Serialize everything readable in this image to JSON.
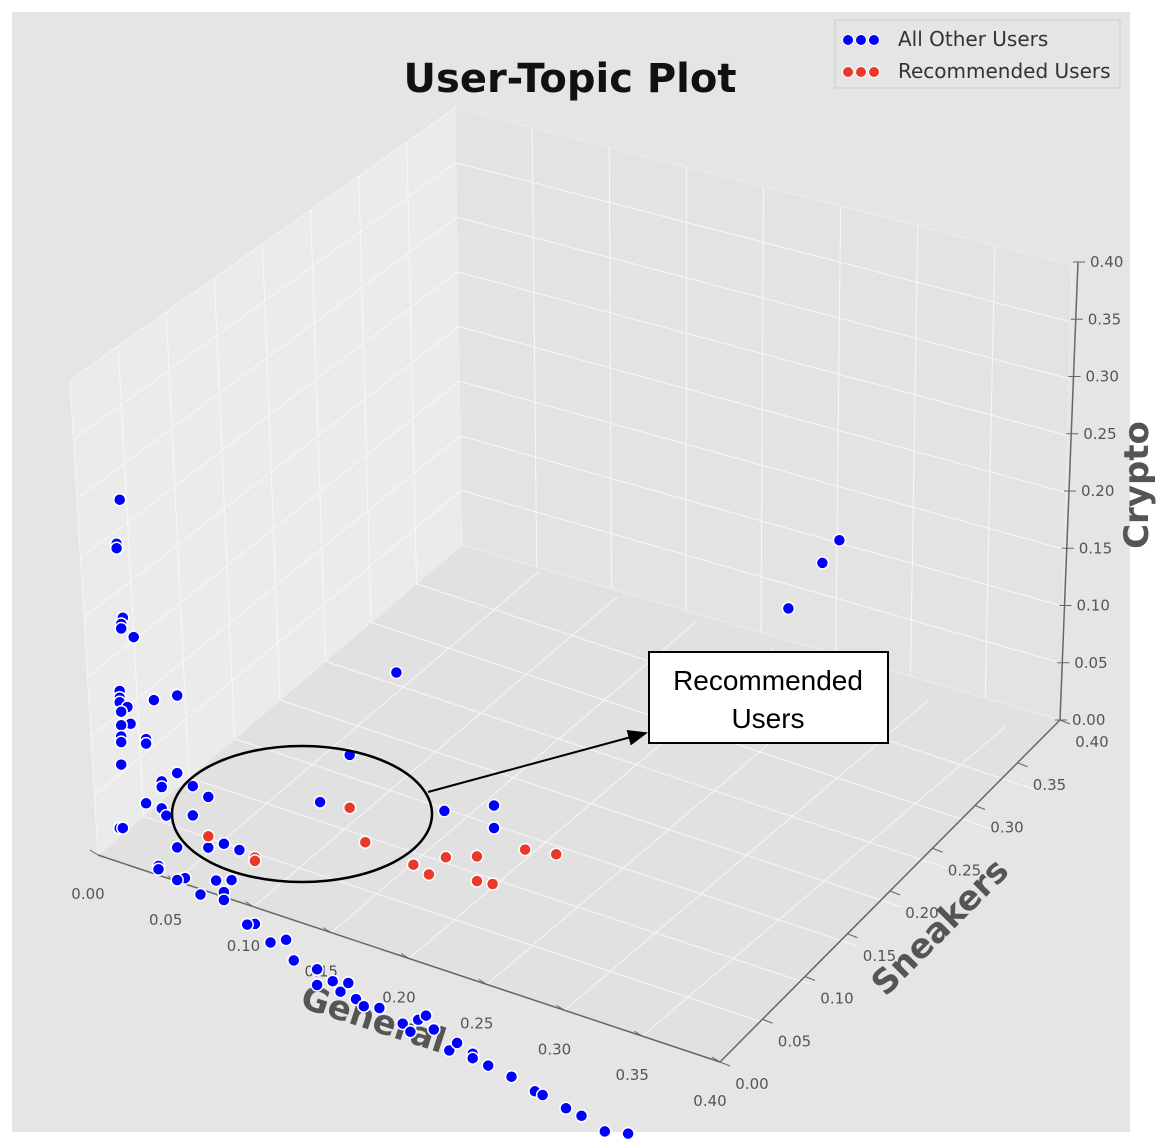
{
  "chart_data": {
    "type": "scatter",
    "title": "User-Topic Plot",
    "axes": {
      "x": {
        "label": "General",
        "range": [
          0,
          0.4
        ],
        "ticks": [
          "0.00",
          "0.05",
          "0.10",
          "0.15",
          "0.20",
          "0.25",
          "0.30",
          "0.35",
          "0.40"
        ]
      },
      "y": {
        "label": "Sneakers",
        "range": [
          0,
          0.4
        ],
        "ticks": [
          "0.00",
          "0.05",
          "0.10",
          "0.15",
          "0.20",
          "0.25",
          "0.30",
          "0.35",
          "0.40"
        ]
      },
      "z": {
        "label": "Crypto",
        "range": [
          0,
          0.4
        ],
        "ticks": [
          "0.00",
          "0.05",
          "0.10",
          "0.15",
          "0.20",
          "0.25",
          "0.30",
          "0.35",
          "0.40"
        ]
      }
    },
    "legend": {
      "position": "top-right",
      "entries": [
        {
          "name": "All Other Users",
          "color": "#0000ff"
        },
        {
          "name": "Recommended Users",
          "color": "#e8392a"
        }
      ]
    },
    "grid": true,
    "series": [
      {
        "name": "All Other Users",
        "color": "#0000ff",
        "points": [
          [
            0.003,
            0.02,
            0.302
          ],
          [
            0.001,
            0.02,
            0.262
          ],
          [
            0.001,
            0.02,
            0.258
          ],
          [
            0.005,
            0.02,
            0.198
          ],
          [
            0.004,
            0.02,
            0.192
          ],
          [
            0.004,
            0.02,
            0.188
          ],
          [
            0.012,
            0.02,
            0.184
          ],
          [
            0.003,
            0.02,
            0.132
          ],
          [
            0.003,
            0.02,
            0.126
          ],
          [
            0.003,
            0.02,
            0.122
          ],
          [
            0.008,
            0.02,
            0.12
          ],
          [
            0.004,
            0.02,
            0.114
          ],
          [
            0.01,
            0.02,
            0.106
          ],
          [
            0.004,
            0.02,
            0.102
          ],
          [
            0.004,
            0.02,
            0.092
          ],
          [
            0.004,
            0.02,
            0.087
          ],
          [
            0.004,
            0.02,
            0.067
          ],
          [
            0.02,
            0.02,
            0.097
          ],
          [
            0.02,
            0.02,
            0.093
          ],
          [
            0.03,
            0.02,
            0.064
          ],
          [
            0.03,
            0.02,
            0.059
          ],
          [
            0.02,
            0.02,
            0.04
          ],
          [
            0.03,
            0.02,
            0.04
          ],
          [
            0.033,
            0.02,
            0.035
          ],
          [
            0.025,
            0.02,
            0.134
          ],
          [
            0.04,
            0.02,
            0.076
          ],
          [
            0.05,
            0.02,
            0.069
          ],
          [
            0.05,
            0.02,
            0.043
          ],
          [
            0.04,
            0.02,
            0.145
          ],
          [
            0.06,
            0.02,
            0.064
          ],
          [
            0.06,
            0.02,
            0.019
          ],
          [
            0.07,
            0.02,
            0.027
          ],
          [
            0.04,
            0.02,
            0.01
          ],
          [
            0.065,
            0.02,
            -0.008
          ],
          [
            0.14,
            0.04,
            0.123
          ],
          [
            0.11,
            0.06,
            0.052
          ],
          [
            0.19,
            0.06,
            0.081
          ],
          [
            0.28,
            0.3,
            0.12
          ],
          [
            0.28,
            0.34,
            0.13
          ],
          [
            0.28,
            0.36,
            0.135
          ],
          [
            0.2,
            0.1,
            0.06
          ],
          [
            0.2,
            0.1,
            0.04
          ],
          [
            0.17,
            0.04,
            0.21
          ],
          [
            0.08,
            0.02,
            0.026
          ],
          [
            0.075,
            0.02,
            -0.003
          ],
          [
            0.003,
            0.02,
            0.01
          ],
          [
            0.005,
            0.02,
            0.011
          ],
          [
            0.028,
            0.02,
            -0.012
          ],
          [
            0.028,
            0.02,
            -0.015
          ],
          [
            0.045,
            0.02,
            -0.015
          ],
          [
            0.04,
            0.02,
            -0.019
          ],
          [
            0.055,
            0.02,
            -0.025
          ],
          [
            0.07,
            0.02,
            -0.016
          ],
          [
            0.07,
            0.02,
            -0.023
          ],
          [
            0.09,
            0.02,
            -0.035
          ],
          [
            0.085,
            0.02,
            -0.038
          ],
          [
            0.1,
            0.02,
            -0.047
          ],
          [
            0.11,
            0.02,
            -0.04
          ],
          [
            0.115,
            0.02,
            -0.056
          ],
          [
            0.13,
            0.02,
            -0.057
          ],
          [
            0.13,
            0.02,
            -0.071
          ],
          [
            0.14,
            0.02,
            -0.063
          ],
          [
            0.145,
            0.02,
            -0.07
          ],
          [
            0.15,
            0.02,
            -0.06
          ],
          [
            0.155,
            0.02,
            -0.072
          ],
          [
            0.16,
            0.02,
            -0.076
          ],
          [
            0.17,
            0.02,
            -0.073
          ],
          [
            0.185,
            0.02,
            -0.08
          ],
          [
            0.19,
            0.02,
            -0.085
          ],
          [
            0.195,
            0.02,
            -0.072
          ],
          [
            0.2,
            0.02,
            -0.066
          ],
          [
            0.205,
            0.02,
            -0.076
          ],
          [
            0.215,
            0.02,
            -0.09
          ],
          [
            0.22,
            0.02,
            -0.081
          ],
          [
            0.23,
            0.02,
            -0.086
          ],
          [
            0.23,
            0.02,
            -0.09
          ],
          [
            0.24,
            0.02,
            -0.092
          ],
          [
            0.255,
            0.02,
            -0.095
          ],
          [
            0.27,
            0.02,
            -0.101
          ],
          [
            0.275,
            0.02,
            -0.102
          ],
          [
            0.29,
            0.02,
            -0.107
          ],
          [
            0.3,
            0.02,
            -0.109
          ],
          [
            0.315,
            0.02,
            -0.116
          ],
          [
            0.33,
            0.02,
            -0.111
          ]
        ]
      },
      {
        "name": "Recommended Users",
        "color": "#e8392a",
        "points": [
          [
            0.06,
            0.02,
            0.029
          ],
          [
            0.09,
            0.02,
            0.024
          ],
          [
            0.09,
            0.02,
            0.021
          ],
          [
            0.14,
            0.04,
            0.076
          ],
          [
            0.15,
            0.04,
            0.05
          ],
          [
            0.17,
            0.06,
            0.024
          ],
          [
            0.18,
            0.06,
            0.02
          ],
          [
            0.18,
            0.08,
            0.02
          ],
          [
            0.2,
            0.08,
            0.03
          ],
          [
            0.2,
            0.08,
            0.008
          ],
          [
            0.21,
            0.08,
            0.01
          ],
          [
            0.22,
            0.1,
            0.03
          ],
          [
            0.24,
            0.1,
            0.035
          ]
        ]
      }
    ],
    "annotation": {
      "text": "Recommended\nUsers"
    }
  }
}
